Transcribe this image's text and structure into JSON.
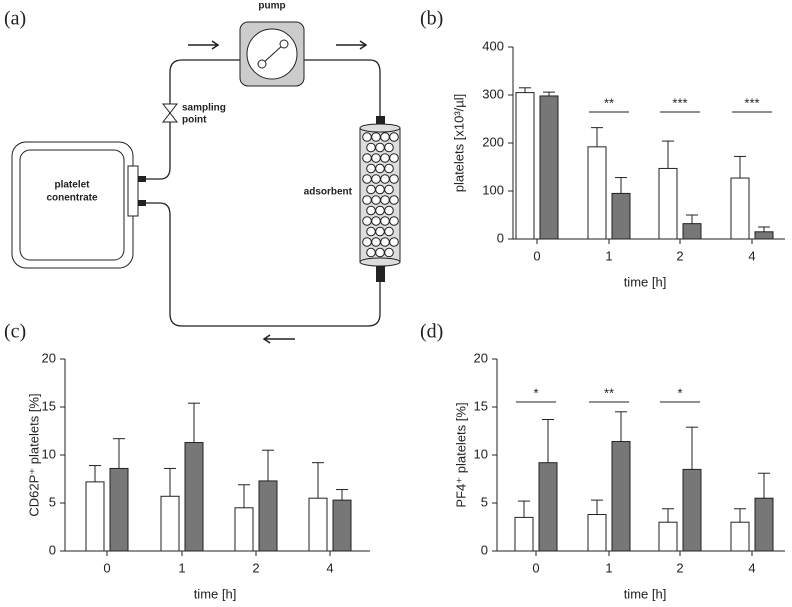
{
  "diagram": {
    "panel_label": "(a)",
    "pump": "pump",
    "sampling": [
      "sampling",
      "point"
    ],
    "bag": [
      "platelet",
      "conentrate"
    ],
    "adsorbent": "adsorbent"
  },
  "chart_data": [
    {
      "type": "bar",
      "panel_label": "(b)",
      "y_label": "platelets [x10³/µl]",
      "x_label": "time [h]",
      "categories": [
        "0",
        "1",
        "2",
        "4"
      ],
      "series": [
        {
          "color": "#ffffff",
          "values": [
            305,
            192,
            147,
            127
          ],
          "errors": [
            10,
            40,
            57,
            45
          ]
        },
        {
          "color": "#777777",
          "values": [
            298,
            95,
            32,
            15
          ],
          "errors": [
            8,
            33,
            18,
            10
          ]
        }
      ],
      "ylim": [
        0,
        400
      ],
      "yticks": [
        0,
        100,
        200,
        300,
        400
      ],
      "annotations": [
        {
          "category": "1",
          "text": "**"
        },
        {
          "category": "2",
          "text": "***"
        },
        {
          "category": "4",
          "text": "***"
        }
      ]
    },
    {
      "type": "bar",
      "panel_label": "(c)",
      "y_label": "CD62P⁺ platelets [%]",
      "x_label": "time [h]",
      "categories": [
        "0",
        "1",
        "2",
        "4"
      ],
      "series": [
        {
          "color": "#ffffff",
          "values": [
            7.2,
            5.7,
            4.5,
            5.5
          ],
          "errors": [
            1.7,
            2.9,
            2.4,
            3.7
          ]
        },
        {
          "color": "#777777",
          "values": [
            8.6,
            11.3,
            7.3,
            5.3
          ],
          "errors": [
            3.1,
            4.1,
            3.2,
            1.1
          ]
        }
      ],
      "ylim": [
        0,
        20
      ],
      "yticks": [
        0,
        5,
        10,
        15,
        20
      ],
      "annotations": []
    },
    {
      "type": "bar",
      "panel_label": "(d)",
      "y_label": "PF4⁺ platelets [%]",
      "x_label": "time [h]",
      "categories": [
        "0",
        "1",
        "2",
        "4"
      ],
      "series": [
        {
          "color": "#ffffff",
          "values": [
            3.5,
            3.8,
            3.0,
            3.0
          ],
          "errors": [
            1.7,
            1.5,
            1.4,
            1.4
          ]
        },
        {
          "color": "#777777",
          "values": [
            9.2,
            11.4,
            8.5,
            5.5
          ],
          "errors": [
            4.5,
            3.1,
            4.4,
            2.6
          ]
        }
      ],
      "ylim": [
        0,
        20
      ],
      "yticks": [
        0,
        5,
        10,
        15,
        20
      ],
      "annotations": [
        {
          "category": "0",
          "text": "*"
        },
        {
          "category": "1",
          "text": "**"
        },
        {
          "category": "2",
          "text": "*"
        }
      ]
    }
  ]
}
